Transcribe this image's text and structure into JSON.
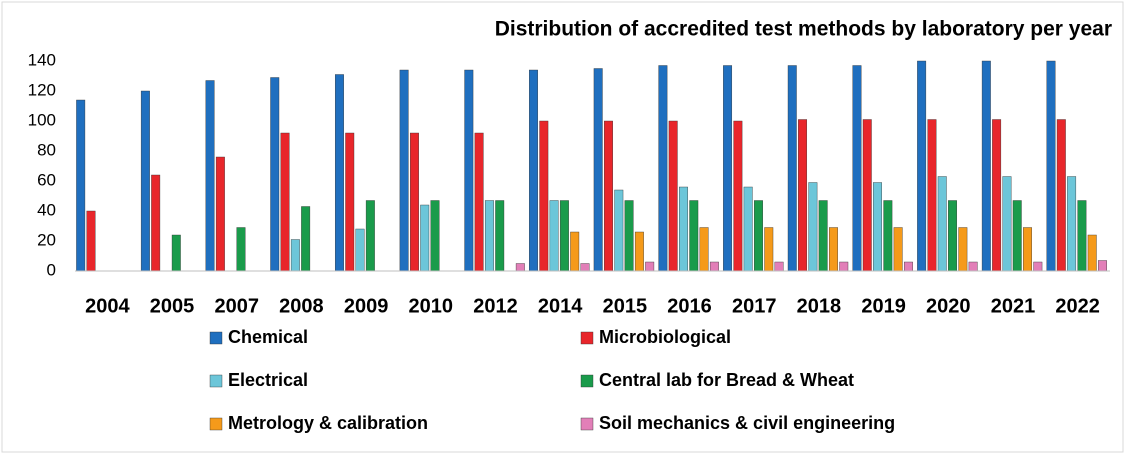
{
  "chart_data": {
    "type": "bar",
    "title": "Distribution of accredited test methods by laboratory per year",
    "categories": [
      "2004",
      "2005",
      "2007",
      "2008",
      "2009",
      "2010",
      "2012",
      "2014",
      "2015",
      "2016",
      "2017",
      "2018",
      "2019",
      "2020",
      "2021",
      "2022"
    ],
    "series": [
      {
        "name": "Chemical",
        "color": "#1f6fbf",
        "values": [
          114,
          120,
          127,
          129,
          131,
          134,
          134,
          134,
          135,
          137,
          137,
          137,
          137,
          140,
          140,
          140
        ]
      },
      {
        "name": "Microbiological",
        "color": "#e8262b",
        "values": [
          40,
          64,
          76,
          92,
          92,
          92,
          92,
          100,
          100,
          100,
          100,
          101,
          101,
          101,
          101,
          101
        ]
      },
      {
        "name": "Electrical",
        "color": "#6cc6d9",
        "values": [
          null,
          null,
          null,
          21,
          28,
          44,
          47,
          47,
          54,
          56,
          56,
          59,
          59,
          63,
          63,
          63
        ]
      },
      {
        "name": "Central lab for Bread & Wheat",
        "color": "#1a9b4b",
        "values": [
          null,
          24,
          29,
          43,
          47,
          47,
          47,
          47,
          47,
          47,
          47,
          47,
          47,
          47,
          47,
          47
        ]
      },
      {
        "name": "Metrology & calibration",
        "color": "#f59a1a",
        "values": [
          null,
          null,
          null,
          null,
          null,
          null,
          null,
          26,
          26,
          29,
          29,
          29,
          29,
          29,
          29,
          24
        ]
      },
      {
        "name": "Soil mechanics & civil engineering",
        "color": "#e27fb8",
        "values": [
          null,
          null,
          null,
          null,
          null,
          null,
          5,
          5,
          6,
          6,
          6,
          6,
          6,
          6,
          6,
          7
        ]
      }
    ],
    "ylim": [
      0,
      140
    ],
    "yticks": [
      0,
      20,
      40,
      60,
      80,
      100,
      120,
      140
    ],
    "grid": false
  }
}
